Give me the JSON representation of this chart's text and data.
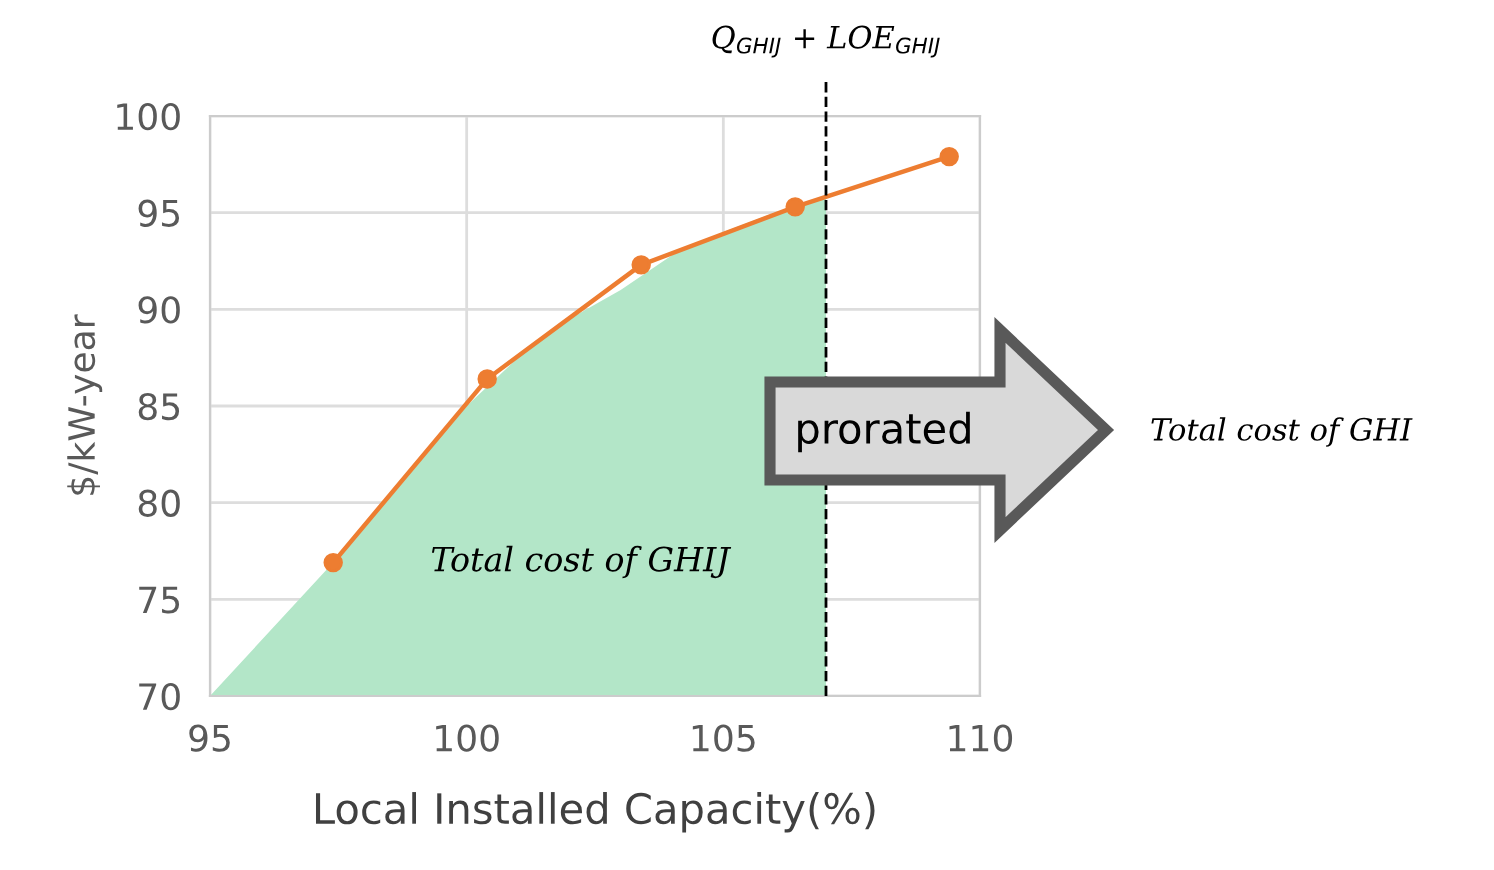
{
  "chart_data": {
    "type": "line",
    "xlabel": "Local Installed Capacity(%)",
    "ylabel": "$/kW-year",
    "series": [
      {
        "type": "area",
        "color": "#b3e6c8",
        "x": [
          95,
          97.4,
          98.5,
          100,
          101,
          102,
          103,
          104,
          105,
          106,
          107
        ],
        "values": [
          70,
          76.9,
          80.5,
          85,
          87.5,
          89.5,
          91,
          92.8,
          94,
          95,
          95.8
        ]
      },
      {
        "color": "#ed7d31",
        "marker": "circle",
        "x": [
          97.4,
          100.4,
          103.4,
          106.4,
          109.4
        ],
        "values": [
          76.9,
          86.4,
          92.3,
          95.3,
          97.9
        ]
      }
    ],
    "line_style": "solid",
    "xlim": [
      95,
      110
    ],
    "xticks": [
      95,
      100,
      105,
      110
    ],
    "ylim": [
      70,
      100
    ],
    "yticks": [
      70,
      75,
      80,
      85,
      90,
      95,
      100
    ],
    "grid": true,
    "ref_lines": [
      {
        "axis": "x",
        "value": 107,
        "label": "Q$_{GHIJ}$ + LOE$_{GHIJ}$",
        "color": "#000000",
        "line_style": "dashed"
      }
    ],
    "annotations": [
      "Total cost of GHIJ",
      "prorated",
      "Total cost of GHI"
    ]
  }
}
